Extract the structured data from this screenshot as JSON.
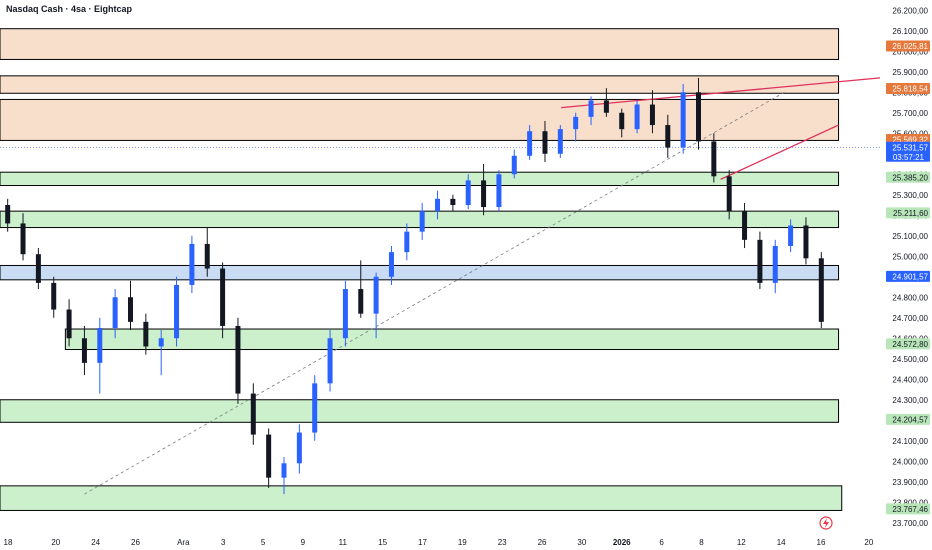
{
  "header": {
    "title": "Nasdaq Cash · 4sa · Eightcap"
  },
  "colors": {
    "up": "#2962ff",
    "down": "#131722",
    "resistance_zone": "#f7dfcb",
    "support_zone": "#ccefcc",
    "blue_zone": "#c9dcf3",
    "trendline": "#e0315c",
    "dashed_line": "#787b86",
    "price_tag_blue": "#2962ff",
    "price_tag_orange": "#e5793d",
    "price_tag_green": "#b8e6b8"
  },
  "chart_data": {
    "type": "candlestick",
    "title": "Nasdaq Cash · 4sa · Eightcap",
    "ylim": [
      23650,
      26250
    ],
    "y_ticks": [
      "26.200,00",
      "26.100,00",
      "26.000,00",
      "25.900,00",
      "25.800,00",
      "25.700,00",
      "25.600,00",
      "25.500,00",
      "25.400,00",
      "25.300,00",
      "25.200,00",
      "25.100,00",
      "25.000,00",
      "24.900,00",
      "24.800,00",
      "24.700,00",
      "24.600,00",
      "24.500,00",
      "24.400,00",
      "24.300,00",
      "24.200,00",
      "24.100,00",
      "24.000,00",
      "23.900,00",
      "23.800,00",
      "23.700,00"
    ],
    "x_ticks": [
      {
        "label": "18",
        "t": 0.5
      },
      {
        "label": "20",
        "t": 3.5
      },
      {
        "label": "24",
        "t": 6.0
      },
      {
        "label": "26",
        "t": 8.5
      },
      {
        "label": "Ara",
        "t": 11.5
      },
      {
        "label": "3",
        "t": 14.0
      },
      {
        "label": "5",
        "t": 16.5
      },
      {
        "label": "9",
        "t": 19.0
      },
      {
        "label": "11",
        "t": 21.5
      },
      {
        "label": "15",
        "t": 24.0
      },
      {
        "label": "17",
        "t": 26.5
      },
      {
        "label": "19",
        "t": 29.0
      },
      {
        "label": "23",
        "t": 31.5
      },
      {
        "label": "26",
        "t": 34.0
      },
      {
        "label": "30",
        "t": 36.5
      },
      {
        "label": "2026",
        "t": 39.0
      },
      {
        "label": "6",
        "t": 41.5
      },
      {
        "label": "8",
        "t": 44.0
      },
      {
        "label": "12",
        "t": 46.5
      },
      {
        "label": "14",
        "t": 49.0
      },
      {
        "label": "16",
        "t": 51.5
      },
      {
        "label": "20",
        "t": 54.5
      }
    ],
    "x_range": [
      0,
      55.2
    ],
    "price_tags": [
      {
        "value": 26025.81,
        "label": "26.025,81",
        "style": "orange"
      },
      {
        "value": 25818.54,
        "label": "25.818,54",
        "style": "orange"
      },
      {
        "value": 25569.32,
        "label": "25.569,32",
        "style": "orange"
      },
      {
        "value": 25531.57,
        "label": "25.531,57",
        "style": "blue",
        "sub": "03:57:21"
      },
      {
        "value": 25385.2,
        "label": "25.385,20",
        "style": "green"
      },
      {
        "value": 25211.6,
        "label": "25.211,60",
        "style": "green"
      },
      {
        "value": 24901.57,
        "label": "24.901,57",
        "style": "blue"
      },
      {
        "value": 24572.8,
        "label": "24.572,80",
        "style": "green"
      },
      {
        "value": 24204.57,
        "label": "24.204,57",
        "style": "green"
      },
      {
        "value": 23767.46,
        "label": "23.767,46",
        "style": "green"
      }
    ],
    "zones": [
      {
        "kind": "resistance",
        "t0": 0,
        "t1": 52.6,
        "y_low": 25960,
        "y_high": 26110
      },
      {
        "kind": "resistance",
        "t0": 0,
        "t1": 52.6,
        "y_low": 25795,
        "y_high": 25880
      },
      {
        "kind": "resistance",
        "t0": 0,
        "t1": 52.6,
        "y_low": 25565,
        "y_high": 25765
      },
      {
        "kind": "support",
        "t0": 0,
        "t1": 52.6,
        "y_low": 25345,
        "y_high": 25410
      },
      {
        "kind": "support",
        "t0": 0,
        "t1": 52.6,
        "y_low": 25140,
        "y_high": 25220
      },
      {
        "kind": "blue",
        "t0": 0,
        "t1": 52.6,
        "y_low": 24885,
        "y_high": 24955
      },
      {
        "kind": "support",
        "t0": 4.1,
        "t1": 52.6,
        "y_low": 24545,
        "y_high": 24645
      },
      {
        "kind": "support",
        "t0": 0,
        "t1": 52.6,
        "y_low": 24190,
        "y_high": 24300
      },
      {
        "kind": "support",
        "t0": 0,
        "t1": 52.8,
        "y_low": 23760,
        "y_high": 23880
      }
    ],
    "trendlines": [
      {
        "style": "solid",
        "t0": 35.2,
        "y0": 25725,
        "t1": 55.2,
        "y1": 25870
      },
      {
        "style": "solid",
        "t0": 45.2,
        "y0": 25375,
        "t1": 52.6,
        "y1": 25640
      },
      {
        "style": "dashed",
        "t0": 5.3,
        "y0": 23840,
        "t1": 49.2,
        "y1": 25800
      }
    ],
    "candles": [
      [
        25250,
        25280,
        25120,
        25160
      ],
      [
        25160,
        25210,
        24980,
        25010
      ],
      [
        25010,
        25040,
        24840,
        24870
      ],
      [
        24870,
        24900,
        24700,
        24740
      ],
      [
        24740,
        24790,
        24560,
        24600
      ],
      [
        24600,
        24660,
        24420,
        24480
      ],
      [
        24480,
        24700,
        24330,
        24650
      ],
      [
        24650,
        24840,
        24600,
        24800
      ],
      [
        24800,
        24880,
        24640,
        24680
      ],
      [
        24680,
        24720,
        24520,
        24560
      ],
      [
        24560,
        24640,
        24420,
        24600
      ],
      [
        24600,
        24900,
        24560,
        24860
      ],
      [
        24860,
        25100,
        24820,
        25060
      ],
      [
        25060,
        25140,
        24900,
        24940
      ],
      [
        24940,
        24970,
        24600,
        24660
      ],
      [
        24660,
        24700,
        24280,
        24330
      ],
      [
        24330,
        24380,
        24080,
        24130
      ],
      [
        24130,
        24160,
        23870,
        23920
      ],
      [
        23920,
        24020,
        23840,
        23990
      ],
      [
        23990,
        24180,
        23940,
        24140
      ],
      [
        24140,
        24420,
        24100,
        24380
      ],
      [
        24380,
        24640,
        24340,
        24600
      ],
      [
        24600,
        24880,
        24560,
        24840
      ],
      [
        24840,
        24980,
        24700,
        24720
      ],
      [
        24720,
        24920,
        24600,
        24900
      ],
      [
        24900,
        25050,
        24860,
        25020
      ],
      [
        25020,
        25160,
        24980,
        25120
      ],
      [
        25120,
        25260,
        25080,
        25220
      ],
      [
        25220,
        25320,
        25180,
        25280
      ],
      [
        25280,
        25300,
        25220,
        25250
      ],
      [
        25250,
        25400,
        25230,
        25370
      ],
      [
        25370,
        25450,
        25200,
        25240
      ],
      [
        25240,
        25420,
        25220,
        25400
      ],
      [
        25400,
        25520,
        25380,
        25490
      ],
      [
        25490,
        25640,
        25470,
        25610
      ],
      [
        25610,
        25660,
        25460,
        25500
      ],
      [
        25500,
        25640,
        25480,
        25620
      ],
      [
        25620,
        25700,
        25560,
        25680
      ],
      [
        25680,
        25780,
        25640,
        25760
      ],
      [
        25760,
        25820,
        25680,
        25700
      ],
      [
        25700,
        25720,
        25580,
        25620
      ],
      [
        25620,
        25760,
        25600,
        25740
      ],
      [
        25740,
        25810,
        25600,
        25640
      ],
      [
        25640,
        25690,
        25480,
        25530
      ],
      [
        25530,
        25840,
        25500,
        25800
      ],
      [
        25800,
        25870,
        25520,
        25560
      ],
      [
        25560,
        25600,
        25360,
        25390
      ],
      [
        25390,
        25420,
        25180,
        25220
      ],
      [
        25220,
        25260,
        25040,
        25080
      ],
      [
        25080,
        25120,
        24840,
        24870
      ],
      [
        24870,
        25080,
        24820,
        25050
      ],
      [
        25050,
        25180,
        25020,
        25150
      ],
      [
        25150,
        25190,
        24960,
        24990
      ],
      [
        24990,
        25020,
        24650,
        24680
      ]
    ]
  }
}
